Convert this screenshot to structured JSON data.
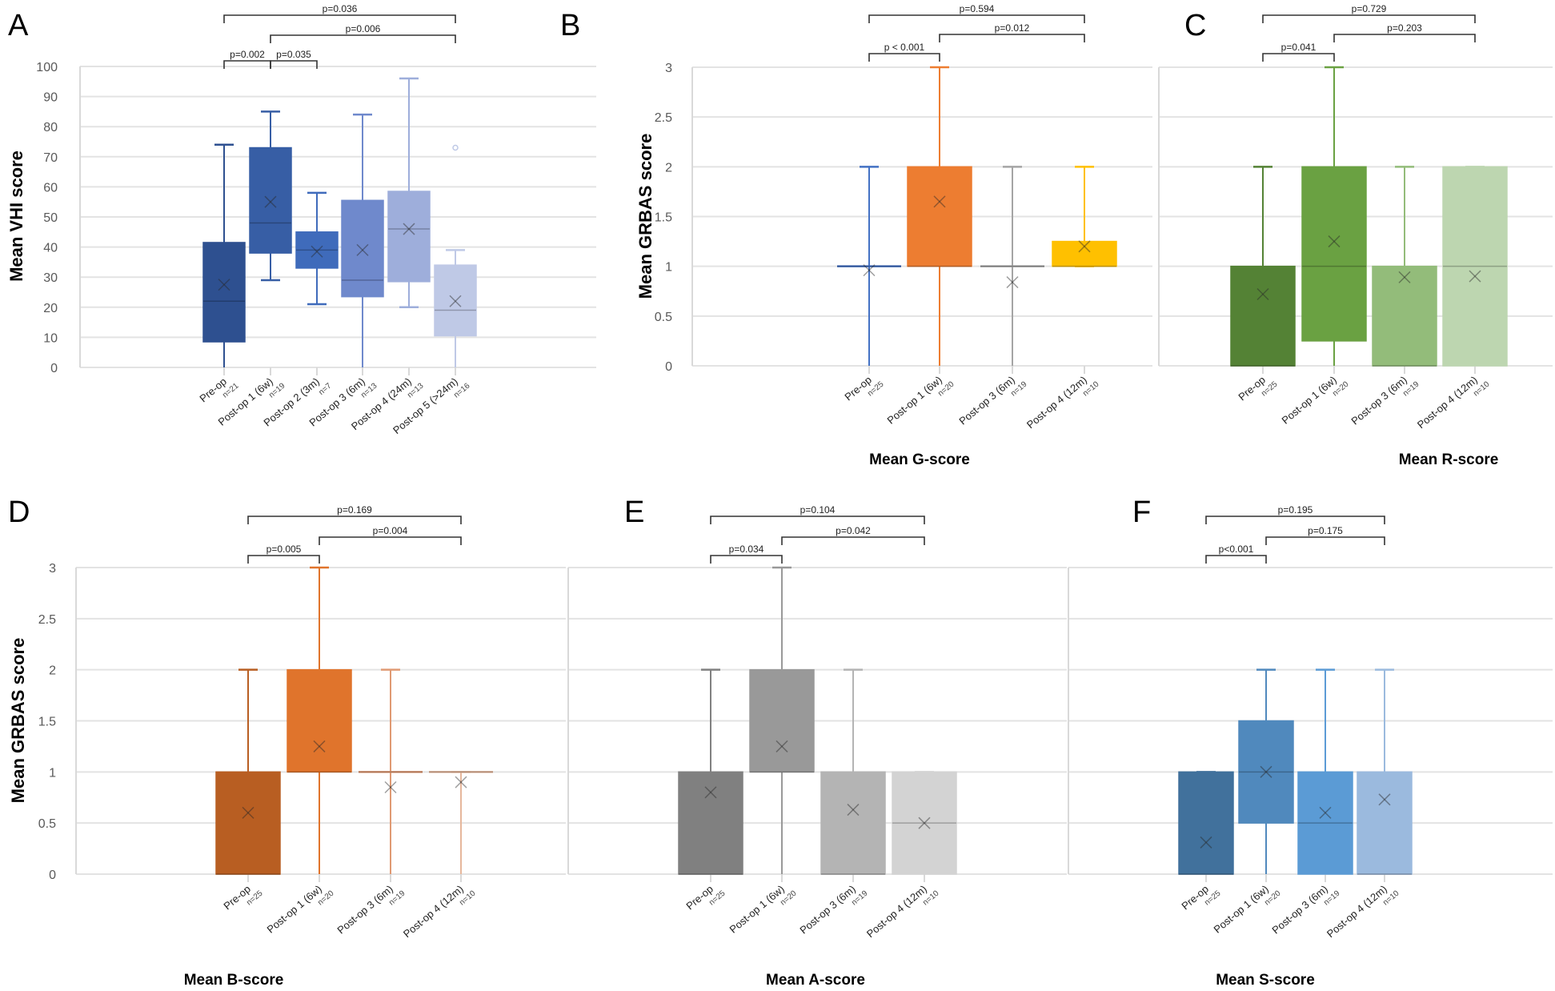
{
  "chart_data": [
    {
      "id": "A",
      "type": "boxplot",
      "panel_label": "A",
      "ylabel": "Mean VHI score",
      "xlabel": "",
      "ylim": [
        0,
        100
      ],
      "yticks": [
        0,
        10,
        20,
        30,
        40,
        50,
        60,
        70,
        80,
        90,
        100
      ],
      "grid": true,
      "categories": [
        {
          "label": "Pre-op",
          "n": "n=21",
          "min": 0,
          "q1": 8.5,
          "median": 22,
          "q3": 41.5,
          "max": 74,
          "mean": 27.5,
          "outliers": [],
          "color": "#2e5090"
        },
        {
          "label": "Post-op 1 (6w)",
          "n": "n=19",
          "min": 29,
          "q1": 38,
          "median": 48,
          "q3": 73,
          "max": 85,
          "mean": 55,
          "outliers": [],
          "color": "#375ea5"
        },
        {
          "label": "Post-op 2 (3m)",
          "n": "n=7",
          "min": 21,
          "q1": 33,
          "median": 39,
          "q3": 45,
          "max": 58,
          "mean": 38.5,
          "outliers": [],
          "color": "#3f6bbb"
        },
        {
          "label": "Post-op 3 (6m)",
          "n": "n=13",
          "min": 0,
          "q1": 23.5,
          "median": 29,
          "q3": 55.5,
          "max": 84,
          "mean": 39,
          "outliers": [],
          "color": "#6f89cc"
        },
        {
          "label": "Post-op 4 (24m)",
          "n": "n=13",
          "min": 20,
          "q1": 28.5,
          "median": 46,
          "q3": 58.5,
          "max": 96,
          "mean": 46,
          "outliers": [],
          "color": "#9eaedb"
        },
        {
          "label": "Post-op 5 (>24m)",
          "n": "n=16",
          "min": 0,
          "q1": 10.5,
          "median": 19,
          "q3": 34,
          "max": 39,
          "mean": 22,
          "outliers": [
            73
          ],
          "color": "#bfc9e6"
        }
      ],
      "comparisons": [
        {
          "from": 0,
          "to": 5,
          "label": "p=0.036",
          "level": 3
        },
        {
          "from": 1,
          "to": 5,
          "label": "p=0.006",
          "level": 2
        },
        {
          "from": 0,
          "to": 1,
          "label": "p=0.002",
          "level": 1
        },
        {
          "from": 1,
          "to": 2,
          "label": "p=0.035",
          "level": 1
        }
      ]
    },
    {
      "id": "B",
      "type": "boxplot",
      "panel_label": "B",
      "ylabel": "Mean GRBAS score",
      "xlabel": "Mean G-score",
      "ylim": [
        0,
        3
      ],
      "yticks": [
        0,
        0.5,
        1,
        1.5,
        2,
        2.5,
        3
      ],
      "grid": true,
      "categories": [
        {
          "label": "Pre-op",
          "n": "n=25",
          "min": 0,
          "q1": 1,
          "median": 1,
          "q3": 1,
          "max": 2,
          "mean": 0.96,
          "color": "#4472c4"
        },
        {
          "label": "Post-op 1 (6w)",
          "n": "n=20",
          "min": 0,
          "q1": 1,
          "median": 1,
          "q3": 2,
          "max": 3,
          "mean": 1.65,
          "color": "#ed7d31"
        },
        {
          "label": "Post-op 3 (6m)",
          "n": "n=19",
          "min": 0,
          "q1": 1,
          "median": 1,
          "q3": 1,
          "max": 2,
          "mean": 0.84,
          "color": "#a5a5a5"
        },
        {
          "label": "Post-op 4 (12m)",
          "n": "n=10",
          "min": 1,
          "q1": 1,
          "median": 1,
          "q3": 1.25,
          "max": 2,
          "mean": 1.2,
          "color": "#ffc000"
        }
      ],
      "comparisons": [
        {
          "from": 0,
          "to": 3,
          "label": "p=0.594",
          "level": 3
        },
        {
          "from": 1,
          "to": 3,
          "label": "p=0.012",
          "level": 2
        },
        {
          "from": 0,
          "to": 1,
          "label": "p < 0.001",
          "level": 1
        }
      ]
    },
    {
      "id": "C",
      "type": "boxplot",
      "panel_label": "C",
      "ylabel": "",
      "xlabel": "Mean R-score",
      "ylim": [
        0,
        3
      ],
      "yticks": [
        0,
        0.5,
        1,
        1.5,
        2,
        2.5,
        3
      ],
      "grid": true,
      "categories": [
        {
          "label": "Pre-op",
          "n": "n=25",
          "min": 0,
          "q1": 0,
          "median": 0,
          "q3": 1,
          "max": 2,
          "mean": 0.72,
          "color": "#548235"
        },
        {
          "label": "Post-op 1 (6w)",
          "n": "n=20",
          "min": 0,
          "q1": 0.25,
          "median": 1,
          "q3": 2,
          "max": 3,
          "mean": 1.25,
          "color": "#6aa142"
        },
        {
          "label": "Post-op 3 (6m)",
          "n": "n=19",
          "min": 0,
          "q1": 0,
          "median": 0,
          "q3": 1,
          "max": 2,
          "mean": 0.89,
          "color": "#93bc7a"
        },
        {
          "label": "Post-op 4 (12m)",
          "n": "n=10",
          "min": 0,
          "q1": 0,
          "median": 1,
          "q3": 2,
          "max": 2,
          "mean": 0.9,
          "color": "#bdd6b0"
        }
      ],
      "comparisons": [
        {
          "from": 0,
          "to": 3,
          "label": "p=0.729",
          "level": 3
        },
        {
          "from": 1,
          "to": 3,
          "label": "p=0.203",
          "level": 2
        },
        {
          "from": 0,
          "to": 1,
          "label": "p=0.041",
          "level": 1
        }
      ]
    },
    {
      "id": "D",
      "type": "boxplot",
      "panel_label": "D",
      "ylabel": "Mean GRBAS score",
      "xlabel": "Mean B-score",
      "ylim": [
        0,
        3
      ],
      "yticks": [
        0,
        0.5,
        1,
        1.5,
        2,
        2.5,
        3
      ],
      "grid": true,
      "categories": [
        {
          "label": "Pre-op",
          "n": "n=25",
          "min": 0,
          "q1": 0,
          "median": 0,
          "q3": 1,
          "max": 2,
          "mean": 0.6,
          "color": "#b85e22"
        },
        {
          "label": "Post-op 1 (6w)",
          "n": "n=20",
          "min": 0,
          "q1": 1,
          "median": 1,
          "q3": 2,
          "max": 3,
          "mean": 1.25,
          "color": "#e0742c"
        },
        {
          "label": "Post-op 3 (6m)",
          "n": "n=19",
          "min": 0,
          "q1": 1,
          "median": 1,
          "q3": 1,
          "max": 2,
          "mean": 0.85,
          "color": "#e09a73"
        },
        {
          "label": "Post-op 4 (12m)",
          "n": "n=10",
          "min": 0,
          "q1": 1,
          "median": 1,
          "q3": 1,
          "max": 1,
          "mean": 0.9,
          "color": "#e6b79c"
        }
      ],
      "comparisons": [
        {
          "from": 0,
          "to": 3,
          "label": "p=0.169",
          "level": 3
        },
        {
          "from": 1,
          "to": 3,
          "label": "p=0.004",
          "level": 2
        },
        {
          "from": 0,
          "to": 1,
          "label": "p=0.005",
          "level": 1
        }
      ]
    },
    {
      "id": "E",
      "type": "boxplot",
      "panel_label": "E",
      "ylabel": "",
      "xlabel": "Mean A-score",
      "ylim": [
        0,
        3
      ],
      "yticks": [
        0,
        0.5,
        1,
        1.5,
        2,
        2.5,
        3
      ],
      "grid": true,
      "categories": [
        {
          "label": "Pre-op",
          "n": "n=25",
          "min": 0,
          "q1": 0,
          "median": 0,
          "q3": 1,
          "max": 2,
          "mean": 0.8,
          "color": "#808080"
        },
        {
          "label": "Post-op 1 (6w)",
          "n": "n=20",
          "min": 0,
          "q1": 1,
          "median": 1,
          "q3": 2,
          "max": 3,
          "mean": 1.25,
          "color": "#999999"
        },
        {
          "label": "Post-op 3 (6m)",
          "n": "n=19",
          "min": 0,
          "q1": 0,
          "median": 0,
          "q3": 1,
          "max": 2,
          "mean": 0.63,
          "color": "#b4b4b4"
        },
        {
          "label": "Post-op 4 (12m)",
          "n": "n=10",
          "min": 0,
          "q1": 0,
          "median": 0.5,
          "q3": 1,
          "max": 1,
          "mean": 0.5,
          "color": "#d3d3d3"
        }
      ],
      "comparisons": [
        {
          "from": 0,
          "to": 3,
          "label": "p=0.104",
          "level": 3
        },
        {
          "from": 1,
          "to": 3,
          "label": "p=0.042",
          "level": 2
        },
        {
          "from": 0,
          "to": 1,
          "label": "p=0.034",
          "level": 1
        }
      ]
    },
    {
      "id": "F",
      "type": "boxplot",
      "panel_label": "F",
      "ylabel": "",
      "xlabel": "Mean S-score",
      "ylim": [
        0,
        3
      ],
      "yticks": [
        0,
        0.5,
        1,
        1.5,
        2,
        2.5,
        3
      ],
      "grid": true,
      "categories": [
        {
          "label": "Pre-op",
          "n": "n=25",
          "min": 0,
          "q1": 0,
          "median": 0,
          "q3": 1,
          "max": 1,
          "mean": 0.31,
          "color": "#41719c"
        },
        {
          "label": "Post-op 1 (6w)",
          "n": "n=20",
          "min": 0,
          "q1": 0.5,
          "median": 1,
          "q3": 1.5,
          "max": 2,
          "mean": 1.0,
          "color": "#5089bd"
        },
        {
          "label": "Post-op 3 (6m)",
          "n": "n=19",
          "min": 0,
          "q1": 0,
          "median": 0.5,
          "q3": 1,
          "max": 2,
          "mean": 0.6,
          "color": "#5b9bd5"
        },
        {
          "label": "Post-op 4 (12m)",
          "n": "n=10",
          "min": 0,
          "q1": 0,
          "median": 0,
          "q3": 1,
          "max": 2,
          "mean": 0.73,
          "color": "#9bbade"
        }
      ],
      "comparisons": [
        {
          "from": 0,
          "to": 3,
          "label": "p=0.195",
          "level": 3
        },
        {
          "from": 1,
          "to": 3,
          "label": "p=0.175",
          "level": 2
        },
        {
          "from": 0,
          "to": 1,
          "label": "p<0.001",
          "level": 1
        }
      ]
    }
  ]
}
